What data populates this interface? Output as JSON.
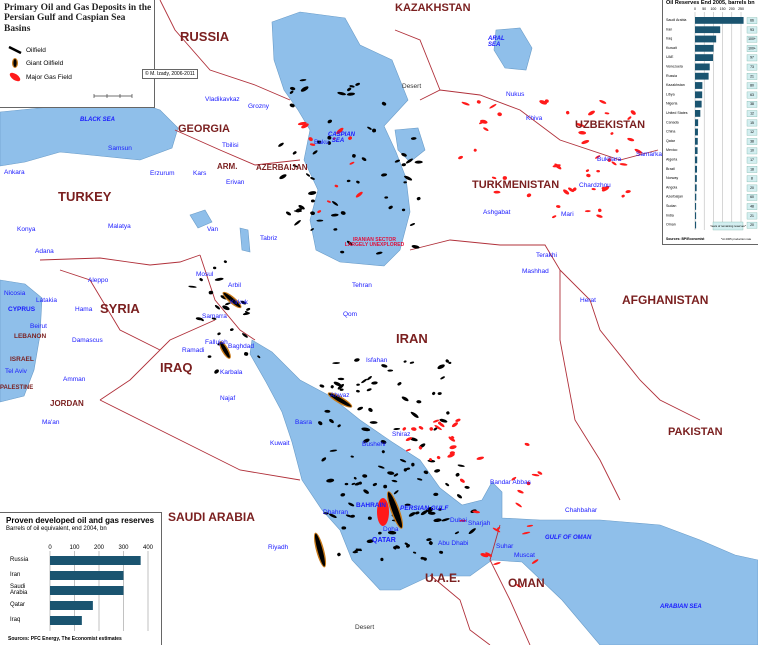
{
  "legend": {
    "title": "Primary Oil and Gas Deposits in the Persian Gulf and Caspian Sea Basins",
    "items": [
      {
        "label": "Oilfield",
        "color": "#000000"
      },
      {
        "label": "Giant Oilfield",
        "color": "#c87a1a"
      },
      {
        "label": "Major Gas Field",
        "color": "#ff1a1a"
      }
    ],
    "credit": "© M. Izady, 2006-2011"
  },
  "colors": {
    "water": "#8fbfea",
    "border": "#b0303a",
    "land": "#ffffff"
  },
  "countries": [
    "RUSSIA",
    "KAZAKHSTAN",
    "GEORGIA",
    "ARM.",
    "AZERBAIJAN",
    "TURKEY",
    "UZBEKISTAN",
    "TURKMENISTAN",
    "SYRIA",
    "IRAQ",
    "IRAN",
    "AFGHANISTAN",
    "PAKISTAN",
    "SAUDI ARABIA",
    "JORDAN",
    "ISRAEL",
    "LEBANON",
    "CYPRUS",
    "PALESTINE",
    "U.A.E.",
    "OMAN",
    "QATAR",
    "BAHRAIN"
  ],
  "seas": [
    "BLACK SEA",
    "CASPIAN SEA",
    "ARAL SEA",
    "PERSIAN GULF",
    "GULF OF OMAN",
    "ARABIAN SEA",
    "IRANIAN SECTOR LARGELY UNEXPLORED"
  ],
  "cities": [
    "Vladikavkaz",
    "Grozny",
    "Samsun",
    "Tbilisi",
    "Baku",
    "Ankara",
    "Erzurum",
    "Kars",
    "Erivan",
    "Tabriz",
    "Van",
    "Malatya",
    "Konya",
    "Adana",
    "Aleppo",
    "Nicosia",
    "Latakia",
    "Hama",
    "Beirut",
    "Damascus",
    "Tel Aviv",
    "Amman",
    "Ma'an",
    "Mosul",
    "Arbil",
    "Kirkuk",
    "Samarra",
    "Ramadi",
    "Fallujah",
    "Baghdad",
    "Karbala",
    "Najaf",
    "Tehran",
    "Qom",
    "Isfahan",
    "Ahwaz",
    "Basra",
    "Kuwait",
    "Shiraz",
    "Bushehr",
    "Bandar Abbas",
    "Dhahran",
    "Doha",
    "Dubai",
    "Sharjah",
    "Abu Dhabi",
    "Suhar",
    "Muscat",
    "Chahbahar",
    "Riyadh",
    "Ashgabat",
    "Mashhad",
    "Terakhi",
    "Herat",
    "Mari",
    "Chardzhou",
    "Bukhara",
    "Samarkand",
    "Nukus",
    "Khiva"
  ],
  "misc": {
    "desert_n": "Desert",
    "desert_s": "Desert"
  },
  "chart_data": [
    {
      "type": "bar",
      "title": "Oil Reserves   End 2005, barrels bn",
      "categories": [
        "Saudi Arabia",
        "Iran",
        "Iraq",
        "Kuwait",
        "UAE",
        "Venezuela",
        "Russia",
        "Kazakhstan",
        "Libya",
        "Nigeria",
        "United States",
        "Canada",
        "China",
        "Qatar",
        "Mexico",
        "Algeria",
        "Brazil",
        "Norway",
        "Angola",
        "Azerbaijan",
        "Sudan",
        "India",
        "Oman"
      ],
      "values": [
        264,
        137,
        115,
        101,
        98,
        80,
        74,
        40,
        39,
        36,
        29,
        17,
        16,
        15,
        14,
        12,
        11,
        10,
        9,
        7,
        6,
        6,
        6
      ],
      "years_remaining": [
        "66",
        "93",
        "100+",
        "100+",
        "97",
        "73",
        "21",
        "80",
        "63",
        "38",
        "12",
        "15",
        "12",
        "38",
        "10",
        "17",
        "18",
        "8",
        "20",
        "60",
        "48",
        "21",
        "20"
      ],
      "ticks": [
        0,
        50,
        100,
        150,
        200,
        250
      ],
      "xlim": [
        0,
        280
      ],
      "years_label": "Years of remaining reserves*",
      "source": "Sources: BP/Economist",
      "footnote": "*At 2005 production rate",
      "bar_color": "#1a5470"
    },
    {
      "type": "bar",
      "title": "Proven developed oil and gas reserves",
      "subtitle": "Barrels of oil equivalent, end 2004, bn",
      "categories": [
        "Russia",
        "Iran",
        "Saudi Arabia",
        "Qatar",
        "Iraq"
      ],
      "values": [
        370,
        300,
        300,
        175,
        130
      ],
      "ticks": [
        0,
        100,
        200,
        300,
        400
      ],
      "xlim": [
        0,
        400
      ],
      "source": "Sources: PFC Energy, The Economist estimates",
      "bar_color": "#1a5470"
    }
  ]
}
